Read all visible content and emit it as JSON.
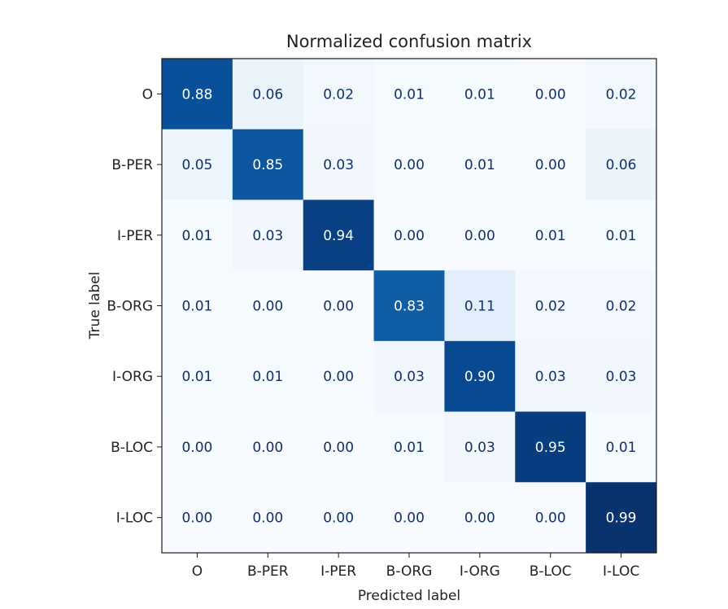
{
  "chart_data": {
    "type": "heatmap",
    "title": "Normalized confusion matrix",
    "xlabel": "Predicted label",
    "ylabel": "True label",
    "x_categories": [
      "O",
      "B-PER",
      "I-PER",
      "B-ORG",
      "I-ORG",
      "B-LOC",
      "I-LOC"
    ],
    "y_categories": [
      "O",
      "B-PER",
      "I-PER",
      "B-ORG",
      "I-ORG",
      "B-LOC",
      "I-LOC"
    ],
    "values": [
      [
        0.88,
        0.06,
        0.02,
        0.01,
        0.01,
        0.0,
        0.02
      ],
      [
        0.05,
        0.85,
        0.03,
        0.0,
        0.01,
        0.0,
        0.06
      ],
      [
        0.01,
        0.03,
        0.94,
        0.0,
        0.0,
        0.01,
        0.01
      ],
      [
        0.01,
        0.0,
        0.0,
        0.83,
        0.11,
        0.02,
        0.02
      ],
      [
        0.01,
        0.01,
        0.0,
        0.03,
        0.9,
        0.03,
        0.03
      ],
      [
        0.0,
        0.0,
        0.0,
        0.01,
        0.03,
        0.95,
        0.01
      ],
      [
        0.0,
        0.0,
        0.0,
        0.0,
        0.0,
        0.0,
        0.99
      ]
    ],
    "colormap": "Blues",
    "value_range": [
      0,
      1
    ],
    "colorbar": false,
    "grid": false
  }
}
